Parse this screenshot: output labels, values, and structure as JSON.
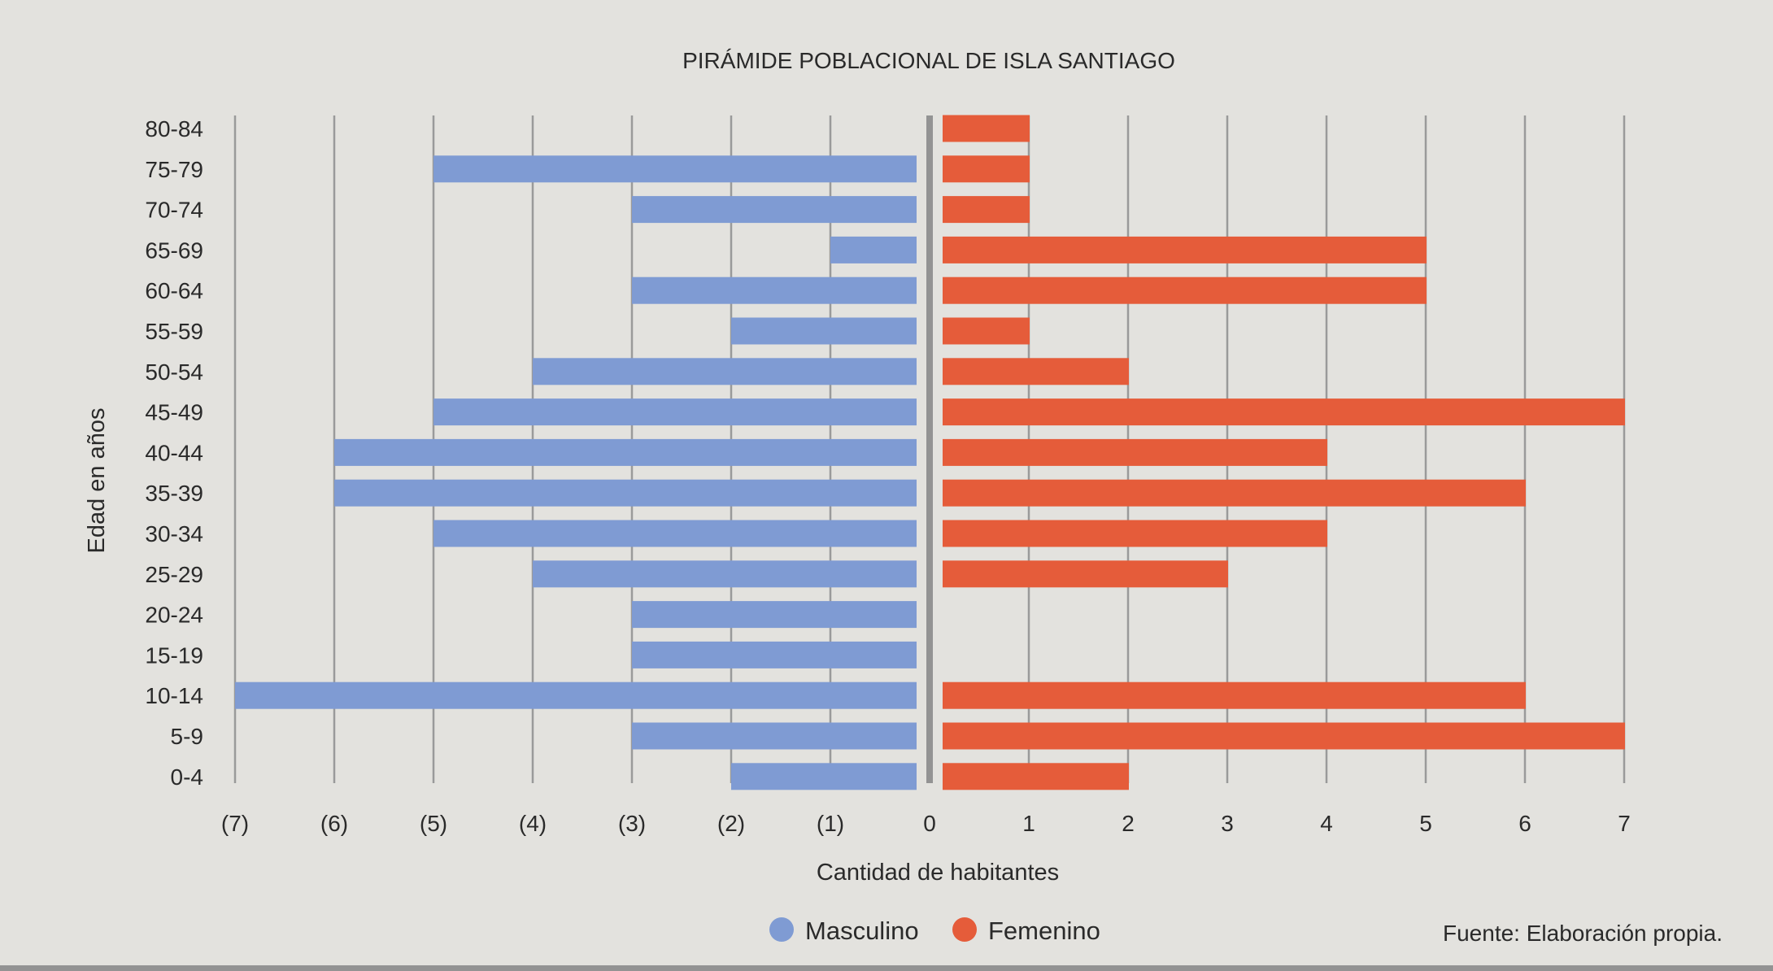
{
  "chart_data": {
    "type": "bar",
    "orientation": "horizontal",
    "title": "PIRÁMIDE POBLACIONAL DE ISLA SANTIAGO",
    "xlabel": "Cantidad de habitantes",
    "ylabel": "Edad en años",
    "xlim": [
      -7,
      7
    ],
    "x_ticks": [
      -7,
      -6,
      -5,
      -4,
      -3,
      -2,
      -1,
      0,
      1,
      2,
      3,
      4,
      5,
      6,
      7
    ],
    "x_tick_labels": [
      "(7)",
      "(6)",
      "(5)",
      "(4)",
      "(3)",
      "(2)",
      "(1)",
      "0",
      "1",
      "2",
      "3",
      "4",
      "5",
      "6",
      "7"
    ],
    "grid": "vertical",
    "categories": [
      "80-84",
      "75-79",
      "70-74",
      "65-69",
      "60-64",
      "55-59",
      "50-54",
      "45-49",
      "40-44",
      "35-39",
      "30-34",
      "25-29",
      "20-24",
      "15-19",
      "10-14",
      "5-9",
      "0-4"
    ],
    "series": [
      {
        "name": "Masculino",
        "color": "#7f9bd3",
        "values": [
          0,
          5,
          3,
          1,
          3,
          2,
          4,
          5,
          6,
          6,
          5,
          4,
          3,
          3,
          7,
          3,
          2
        ]
      },
      {
        "name": "Femenino",
        "color": "#e55c3a",
        "values": [
          1,
          1,
          1,
          5,
          5,
          1,
          2,
          7,
          4,
          6,
          4,
          3,
          0,
          0,
          6,
          7,
          2
        ]
      }
    ],
    "legend": "bottom-center",
    "source": "Fuente: Elaboración propia."
  }
}
